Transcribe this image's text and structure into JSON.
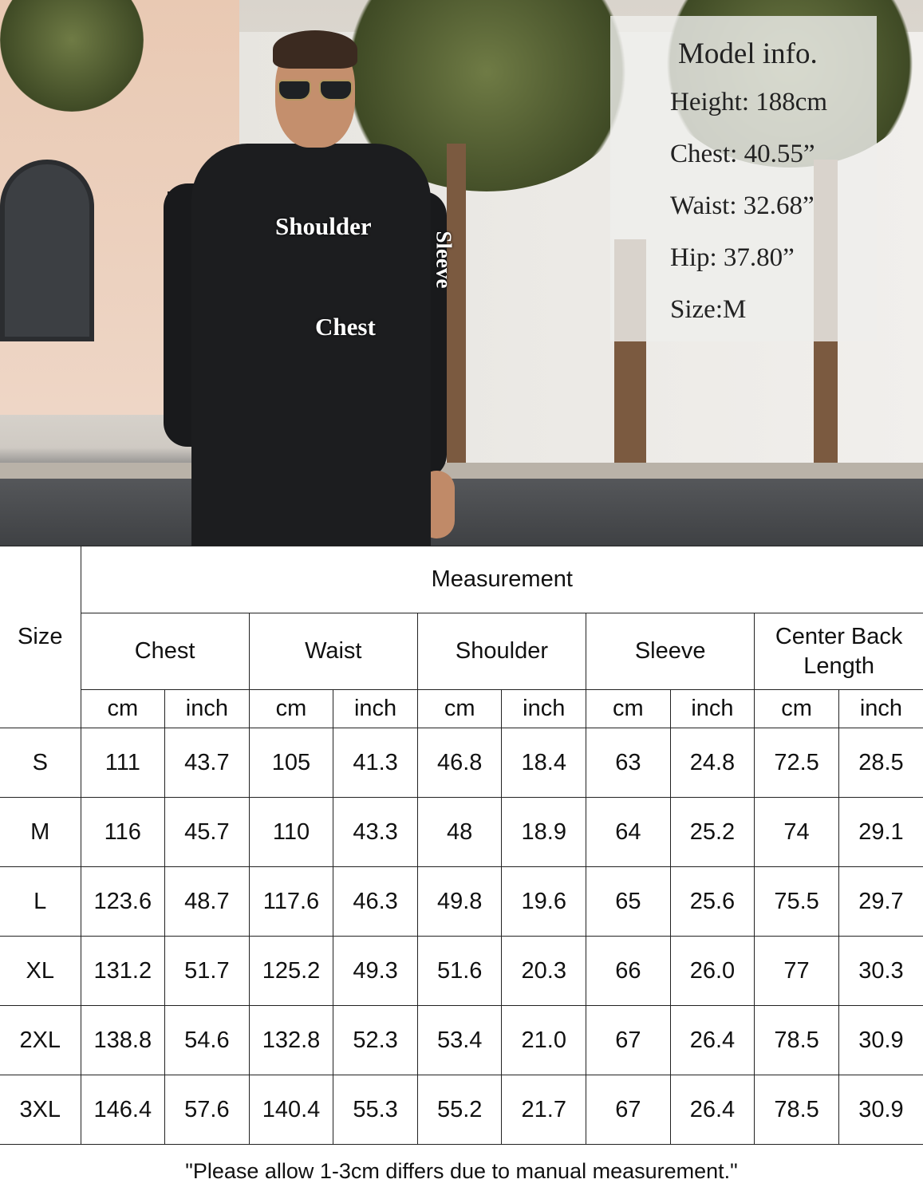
{
  "photo": {
    "labels": {
      "shoulder": "Shoulder",
      "chest": "Chest",
      "sleeve": "Sleeve"
    }
  },
  "model_info": {
    "title": "Model info.",
    "rows": [
      "Height: 188cm",
      "Chest: 40.55”",
      "Waist: 32.68”",
      "Hip: 37.80”",
      "Size:M"
    ]
  },
  "table": {
    "size_header": "Size",
    "group_header": "Measurement",
    "columns": [
      "Chest",
      "Waist",
      "Shoulder",
      "Sleeve",
      "Center Back Length"
    ],
    "units": [
      "cm",
      "inch"
    ],
    "rows": [
      [
        "S",
        "111",
        "43.7",
        "105",
        "41.3",
        "46.8",
        "18.4",
        "63",
        "24.8",
        "72.5",
        "28.5"
      ],
      [
        "M",
        "116",
        "45.7",
        "110",
        "43.3",
        "48",
        "18.9",
        "64",
        "25.2",
        "74",
        "29.1"
      ],
      [
        "L",
        "123.6",
        "48.7",
        "117.6",
        "46.3",
        "49.8",
        "19.6",
        "65",
        "25.6",
        "75.5",
        "29.7"
      ],
      [
        "XL",
        "131.2",
        "51.7",
        "125.2",
        "49.3",
        "51.6",
        "20.3",
        "66",
        "26.0",
        "77",
        "30.3"
      ],
      [
        "2XL",
        "138.8",
        "54.6",
        "132.8",
        "52.3",
        "53.4",
        "21.0",
        "67",
        "26.4",
        "78.5",
        "30.9"
      ],
      [
        "3XL",
        "146.4",
        "57.6",
        "140.4",
        "55.3",
        "55.2",
        "21.7",
        "67",
        "26.4",
        "78.5",
        "30.9"
      ]
    ],
    "footnote": "\"Please allow 1-3cm differs due to manual measurement.\""
  }
}
